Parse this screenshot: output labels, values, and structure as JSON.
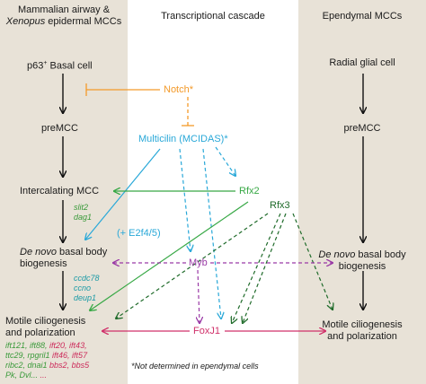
{
  "headers": {
    "left_line1": "Mammalian airway &",
    "left_line2_italic": "Xenopus",
    "left_line2_rest": " epidermal MCCs",
    "center": "Transcriptional cascade",
    "right": "Ependymal MCCs"
  },
  "left_stages": {
    "basal_prefix": "p63",
    "basal_sup": "+",
    "basal_rest": " Basal cell",
    "premcc": "preMCC",
    "intercalating": "Intercalating MCC",
    "denovo_italic": "De novo",
    "denovo_rest": " basal body",
    "biogenesis": "biogenesis",
    "motile1": "Motile ciliogenesis",
    "motile2": "and polarization"
  },
  "right_stages": {
    "radial": "Radial glial cell",
    "premcc": "preMCC",
    "denovo_italic": "De novo",
    "denovo_rest": " basal body",
    "biogenesis": "biogenesis",
    "motile1": "Motile ciliogenesis",
    "motile2": "and polarization"
  },
  "genes": {
    "slit2": "slit2",
    "dag1": "dag1",
    "ccdc78": "ccdc78",
    "ccno": "ccno",
    "deup1": "deup1",
    "row1_green": "ift121, ift88,",
    "row1_red": "ift20, ift43,",
    "row2_green": "ttc29, rpgril1",
    "row2_red": "ift46, ift57",
    "row3_green": "ribc2, dnai1",
    "row3_red": "bbs2, bbs5",
    "row4_green": "Pk, Dvl...",
    "row4_red": "..."
  },
  "factors": {
    "notch": "Notch*",
    "multicilin": "Multicilin (MCIDAS)*",
    "rfx2": "Rfx2",
    "rfx3": "Rfx3",
    "e2f": "(+ E2f4/5)",
    "myb": "Myb",
    "foxj1": "FoxJ1"
  },
  "footnote": "*Not determined in ependymal cells",
  "colors": {
    "panel": "#e8e2d7",
    "notch": "#f39a2a",
    "multicilin": "#29a8d8",
    "rfx2": "#37a845",
    "rfx3": "#1f6b2a",
    "myb": "#9a3aa6",
    "foxj1": "#d0306a",
    "gene_green": "#3a9a3a",
    "gene_teal": "#1a9aa6",
    "gene_red": "#cc2a5a"
  }
}
